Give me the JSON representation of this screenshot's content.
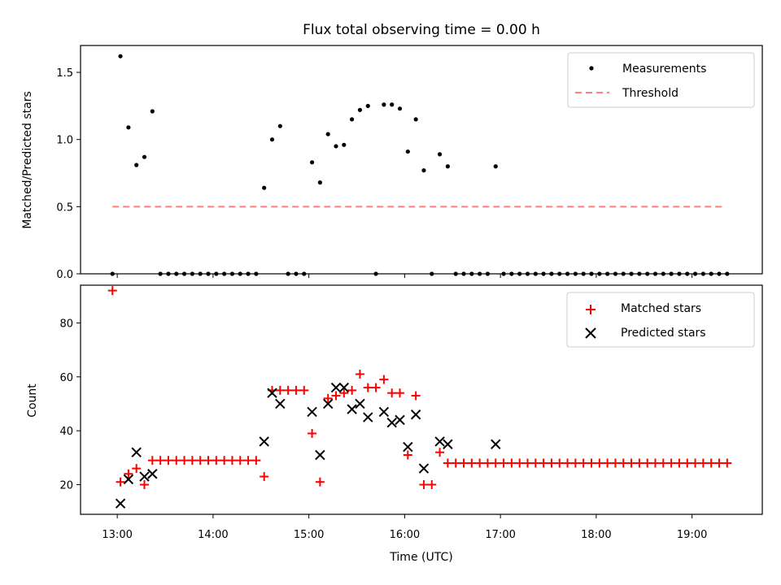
{
  "chart_data": [
    {
      "type": "scatter",
      "title": "Flux total observing time = 0.00 h",
      "xlabel": "",
      "ylabel": "Matched/Predicted stars",
      "xlim": [
        "12:37",
        "19:44"
      ],
      "ylim": [
        0,
        1.7
      ],
      "yticks": [
        0.0,
        0.5,
        1.0,
        1.5
      ],
      "ytick_labels": [
        "0.0",
        "0.5",
        "1.0",
        "1.5"
      ],
      "xticks": [
        "13:00",
        "14:00",
        "15:00",
        "16:00",
        "17:00",
        "18:00",
        "19:00"
      ],
      "legend": {
        "placement": "top-right",
        "entries": [
          "Measurements",
          "Threshold"
        ]
      },
      "colors": {
        "measurements": "#000000",
        "threshold": "#ff7f7f"
      },
      "threshold": {
        "name": "Threshold",
        "value": 0.5,
        "x_range": [
          "12:57",
          "19:20"
        ]
      },
      "series": [
        {
          "name": "Measurements",
          "x": [
            "12:57",
            "13:02",
            "13:07",
            "13:12",
            "13:17",
            "13:22",
            "13:27",
            "13:32",
            "13:37",
            "13:42",
            "13:47",
            "13:52",
            "13:57",
            "14:02",
            "14:07",
            "14:12",
            "14:17",
            "14:22",
            "14:27",
            "14:32",
            "14:37",
            "14:42",
            "14:47",
            "14:52",
            "14:57",
            "15:02",
            "15:07",
            "15:12",
            "15:17",
            "15:22",
            "15:27",
            "15:32",
            "15:37",
            "15:42",
            "15:47",
            "15:52",
            "15:57",
            "16:02",
            "16:07",
            "16:12",
            "16:17",
            "16:22",
            "16:27",
            "16:32",
            "16:37",
            "16:42",
            "16:47",
            "16:52",
            "16:57",
            "17:02",
            "17:07",
            "17:12",
            "17:17",
            "17:22",
            "17:27",
            "17:32",
            "17:37",
            "17:42",
            "17:47",
            "17:52",
            "17:57",
            "18:02",
            "18:07",
            "18:12",
            "18:17",
            "18:22",
            "18:27",
            "18:32",
            "18:37",
            "18:42",
            "18:47",
            "18:52",
            "18:57",
            "19:02",
            "19:07",
            "19:12",
            "19:17",
            "19:22"
          ],
          "y": [
            0.0,
            1.62,
            1.09,
            0.81,
            0.87,
            1.21,
            0.0,
            0.0,
            0.0,
            0.0,
            0.0,
            0.0,
            0.0,
            0.0,
            0.0,
            0.0,
            0.0,
            0.0,
            0.0,
            0.64,
            1.0,
            1.1,
            0.0,
            0.0,
            0.0,
            0.83,
            0.68,
            1.04,
            0.95,
            0.96,
            1.15,
            1.22,
            1.25,
            0.0,
            1.26,
            1.26,
            1.23,
            0.91,
            1.15,
            0.77,
            0.0,
            0.89,
            0.8,
            0.0,
            0.0,
            0.0,
            0.0,
            0.0,
            0.8,
            0.0,
            0.0,
            0.0,
            0.0,
            0.0,
            0.0,
            0.0,
            0.0,
            0.0,
            0.0,
            0.0,
            0.0,
            0.0,
            0.0,
            0.0,
            0.0,
            0.0,
            0.0,
            0.0,
            0.0,
            0.0,
            0.0,
            0.0,
            0.0,
            0.0,
            0.0,
            0.0,
            0.0,
            0.0
          ]
        }
      ]
    },
    {
      "type": "scatter",
      "title": "",
      "xlabel": "Time (UTC)",
      "ylabel": "Count",
      "xlim": [
        "12:37",
        "19:44"
      ],
      "ylim": [
        9,
        94
      ],
      "yticks": [
        20,
        40,
        60,
        80
      ],
      "ytick_labels": [
        "20",
        "40",
        "60",
        "80"
      ],
      "xticks": [
        "13:00",
        "14:00",
        "15:00",
        "16:00",
        "17:00",
        "18:00",
        "19:00"
      ],
      "xtick_labels": [
        "13:00",
        "14:00",
        "15:00",
        "16:00",
        "17:00",
        "18:00",
        "19:00"
      ],
      "legend": {
        "placement": "top-right",
        "entries": [
          "Matched stars",
          "Predicted stars"
        ]
      },
      "colors": {
        "matched": "#ff0000",
        "predicted": "#000000"
      },
      "series": [
        {
          "name": "Matched stars",
          "marker": "plus",
          "x": [
            "12:57",
            "13:02",
            "13:07",
            "13:12",
            "13:17",
            "13:22",
            "13:27",
            "13:32",
            "13:37",
            "13:42",
            "13:47",
            "13:52",
            "13:57",
            "14:02",
            "14:07",
            "14:12",
            "14:17",
            "14:22",
            "14:27",
            "14:32",
            "14:37",
            "14:42",
            "14:47",
            "14:52",
            "14:57",
            "15:02",
            "15:07",
            "15:12",
            "15:17",
            "15:22",
            "15:27",
            "15:32",
            "15:37",
            "15:42",
            "15:47",
            "15:52",
            "15:57",
            "16:02",
            "16:07",
            "16:12",
            "16:17",
            "16:22",
            "16:27",
            "16:32",
            "16:37",
            "16:42",
            "16:47",
            "16:52",
            "16:57",
            "17:02",
            "17:07",
            "17:12",
            "17:17",
            "17:22",
            "17:27",
            "17:32",
            "17:37",
            "17:42",
            "17:47",
            "17:52",
            "17:57",
            "18:02",
            "18:07",
            "18:12",
            "18:17",
            "18:22",
            "18:27",
            "18:32",
            "18:37",
            "18:42",
            "18:47",
            "18:52",
            "18:57",
            "19:02",
            "19:07",
            "19:12",
            "19:17",
            "19:22"
          ],
          "y": [
            92,
            21,
            24,
            26,
            20,
            29,
            29,
            29,
            29,
            29,
            29,
            29,
            29,
            29,
            29,
            29,
            29,
            29,
            29,
            23,
            55,
            55,
            55,
            55,
            55,
            39,
            21,
            52,
            53,
            54,
            55,
            61,
            56,
            56,
            59,
            54,
            54,
            31,
            53,
            20,
            20,
            32,
            28,
            28,
            28,
            28,
            28,
            28,
            28,
            28,
            28,
            28,
            28,
            28,
            28,
            28,
            28,
            28,
            28,
            28,
            28,
            28,
            28,
            28,
            28,
            28,
            28,
            28,
            28,
            28,
            28,
            28,
            28,
            28,
            28,
            28,
            28,
            28
          ]
        },
        {
          "name": "Predicted stars",
          "marker": "x",
          "x": [
            "13:02",
            "13:07",
            "13:12",
            "13:17",
            "13:22",
            "14:32",
            "14:37",
            "14:42",
            "15:02",
            "15:07",
            "15:12",
            "15:17",
            "15:22",
            "15:27",
            "15:32",
            "15:37",
            "15:47",
            "15:52",
            "15:57",
            "16:02",
            "16:07",
            "16:12",
            "16:22",
            "16:27",
            "16:57"
          ],
          "y": [
            13,
            22,
            32,
            23,
            24,
            36,
            54,
            50,
            47,
            31,
            50,
            56,
            56,
            48,
            50,
            45,
            47,
            43,
            44,
            34,
            46,
            26,
            36,
            35,
            35
          ]
        }
      ]
    }
  ]
}
